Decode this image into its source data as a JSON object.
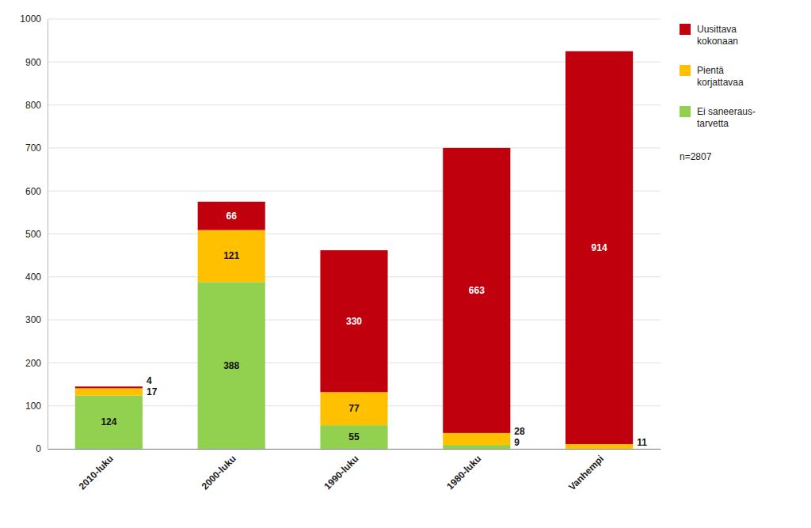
{
  "chart_data": {
    "type": "bar",
    "stacked": true,
    "categories": [
      "2010-luku",
      "2000-luku",
      "1990-luku",
      "1980-luku",
      "Vanhempi"
    ],
    "series": [
      {
        "name": "Ei saneeraus-\ntarvetta",
        "color": "#92D050",
        "values": [
          124,
          388,
          55,
          9,
          0
        ]
      },
      {
        "name": "Pientä\nkorjattavaa",
        "color": "#FFC000",
        "values": [
          17,
          121,
          77,
          28,
          11
        ]
      },
      {
        "name": "Uusittava\nkokonaan",
        "color": "#C0000C",
        "values": [
          4,
          66,
          330,
          663,
          914
        ]
      }
    ],
    "ylim": [
      0,
      1000
    ],
    "yticks": [
      0,
      100,
      200,
      300,
      400,
      500,
      600,
      700,
      800,
      900,
      1000
    ],
    "grid": true,
    "legend": "right",
    "data_labels": true,
    "annotations": [
      "n=2807"
    ]
  }
}
